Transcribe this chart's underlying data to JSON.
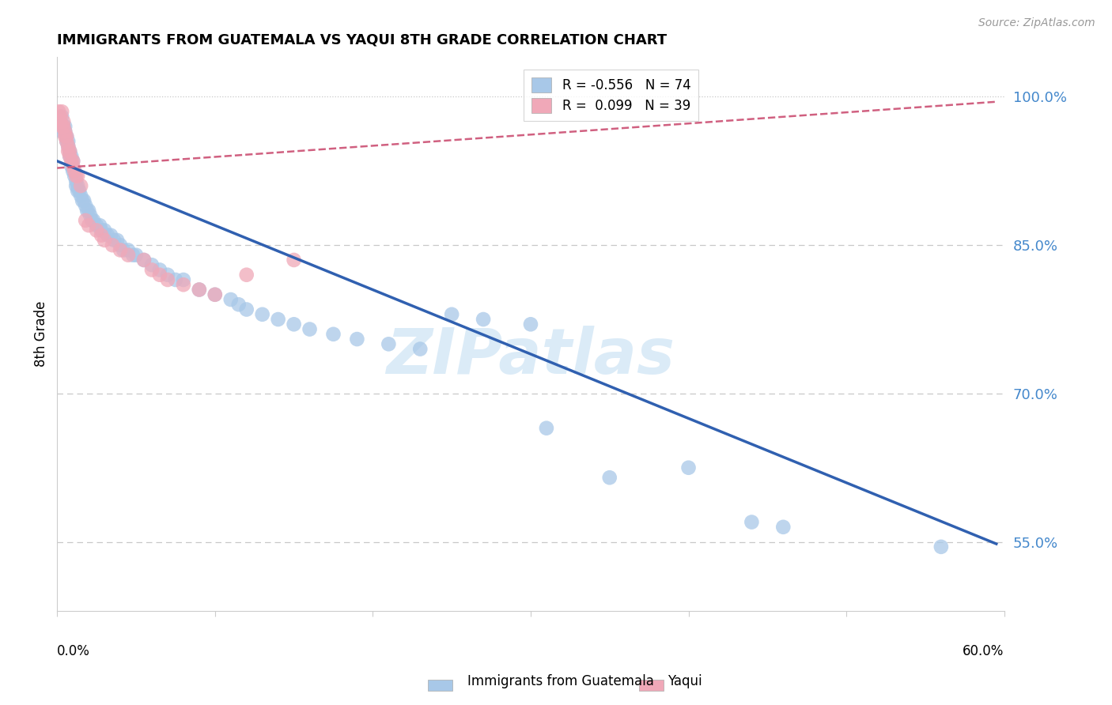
{
  "title": "IMMIGRANTS FROM GUATEMALA VS YAQUI 8TH GRADE CORRELATION CHART",
  "source": "Source: ZipAtlas.com",
  "ylabel": "8th Grade",
  "xlim": [
    0.0,
    0.6
  ],
  "ylim": [
    0.48,
    1.04
  ],
  "blue_R": -0.556,
  "blue_N": 74,
  "pink_R": 0.099,
  "pink_N": 39,
  "watermark": "ZIPatlas",
  "blue_color": "#a8c8e8",
  "blue_line_color": "#3060b0",
  "pink_color": "#f0a8b8",
  "pink_line_color": "#d06080",
  "grid_color": "#c8c8c8",
  "blue_scatter": [
    [
      0.001,
      0.97
    ],
    [
      0.002,
      0.975
    ],
    [
      0.003,
      0.98
    ],
    [
      0.003,
      0.965
    ],
    [
      0.004,
      0.97
    ],
    [
      0.005,
      0.965
    ],
    [
      0.005,
      0.97
    ],
    [
      0.006,
      0.96
    ],
    [
      0.006,
      0.955
    ],
    [
      0.007,
      0.955
    ],
    [
      0.007,
      0.95
    ],
    [
      0.008,
      0.945
    ],
    [
      0.008,
      0.94
    ],
    [
      0.009,
      0.94
    ],
    [
      0.009,
      0.93
    ],
    [
      0.01,
      0.935
    ],
    [
      0.01,
      0.925
    ],
    [
      0.011,
      0.925
    ],
    [
      0.011,
      0.92
    ],
    [
      0.012,
      0.915
    ],
    [
      0.012,
      0.91
    ],
    [
      0.013,
      0.91
    ],
    [
      0.013,
      0.905
    ],
    [
      0.014,
      0.905
    ],
    [
      0.015,
      0.9
    ],
    [
      0.016,
      0.895
    ],
    [
      0.017,
      0.895
    ],
    [
      0.018,
      0.89
    ],
    [
      0.019,
      0.885
    ],
    [
      0.02,
      0.885
    ],
    [
      0.021,
      0.88
    ],
    [
      0.022,
      0.875
    ],
    [
      0.023,
      0.875
    ],
    [
      0.025,
      0.87
    ],
    [
      0.027,
      0.87
    ],
    [
      0.028,
      0.865
    ],
    [
      0.03,
      0.865
    ],
    [
      0.032,
      0.86
    ],
    [
      0.034,
      0.86
    ],
    [
      0.036,
      0.855
    ],
    [
      0.038,
      0.855
    ],
    [
      0.04,
      0.85
    ],
    [
      0.042,
      0.845
    ],
    [
      0.045,
      0.845
    ],
    [
      0.048,
      0.84
    ],
    [
      0.05,
      0.84
    ],
    [
      0.055,
      0.835
    ],
    [
      0.06,
      0.83
    ],
    [
      0.065,
      0.825
    ],
    [
      0.07,
      0.82
    ],
    [
      0.075,
      0.815
    ],
    [
      0.08,
      0.815
    ],
    [
      0.09,
      0.805
    ],
    [
      0.1,
      0.8
    ],
    [
      0.11,
      0.795
    ],
    [
      0.115,
      0.79
    ],
    [
      0.12,
      0.785
    ],
    [
      0.13,
      0.78
    ],
    [
      0.14,
      0.775
    ],
    [
      0.15,
      0.77
    ],
    [
      0.16,
      0.765
    ],
    [
      0.175,
      0.76
    ],
    [
      0.19,
      0.755
    ],
    [
      0.21,
      0.75
    ],
    [
      0.23,
      0.745
    ],
    [
      0.25,
      0.78
    ],
    [
      0.27,
      0.775
    ],
    [
      0.3,
      0.77
    ],
    [
      0.31,
      0.665
    ],
    [
      0.35,
      0.615
    ],
    [
      0.4,
      0.625
    ],
    [
      0.44,
      0.57
    ],
    [
      0.46,
      0.565
    ],
    [
      0.56,
      0.545
    ]
  ],
  "pink_scatter": [
    [
      0.001,
      0.985
    ],
    [
      0.002,
      0.98
    ],
    [
      0.002,
      0.975
    ],
    [
      0.003,
      0.985
    ],
    [
      0.003,
      0.97
    ],
    [
      0.004,
      0.975
    ],
    [
      0.004,
      0.97
    ],
    [
      0.005,
      0.965
    ],
    [
      0.005,
      0.96
    ],
    [
      0.006,
      0.96
    ],
    [
      0.006,
      0.955
    ],
    [
      0.007,
      0.95
    ],
    [
      0.007,
      0.945
    ],
    [
      0.008,
      0.945
    ],
    [
      0.008,
      0.94
    ],
    [
      0.009,
      0.935
    ],
    [
      0.01,
      0.935
    ],
    [
      0.01,
      0.93
    ],
    [
      0.011,
      0.925
    ],
    [
      0.012,
      0.92
    ],
    [
      0.013,
      0.92
    ],
    [
      0.015,
      0.91
    ],
    [
      0.018,
      0.875
    ],
    [
      0.02,
      0.87
    ],
    [
      0.025,
      0.865
    ],
    [
      0.028,
      0.86
    ],
    [
      0.03,
      0.855
    ],
    [
      0.035,
      0.85
    ],
    [
      0.04,
      0.845
    ],
    [
      0.045,
      0.84
    ],
    [
      0.055,
      0.835
    ],
    [
      0.06,
      0.825
    ],
    [
      0.065,
      0.82
    ],
    [
      0.07,
      0.815
    ],
    [
      0.08,
      0.81
    ],
    [
      0.09,
      0.805
    ],
    [
      0.1,
      0.8
    ],
    [
      0.12,
      0.82
    ],
    [
      0.15,
      0.835
    ]
  ],
  "blue_trend_x": [
    0.0,
    0.595
  ],
  "blue_trend_y": [
    0.935,
    0.548
  ],
  "pink_trend_x": [
    0.0,
    0.595
  ],
  "pink_trend_y": [
    0.928,
    0.995
  ],
  "ytick_vals": [
    0.55,
    0.7,
    0.85,
    1.0
  ],
  "ytick_labels": [
    "55.0%",
    "70.0%",
    "85.0%",
    "100.0%"
  ],
  "xtick_vals": [
    0.0,
    0.1,
    0.2,
    0.3,
    0.4,
    0.5,
    0.6
  ]
}
